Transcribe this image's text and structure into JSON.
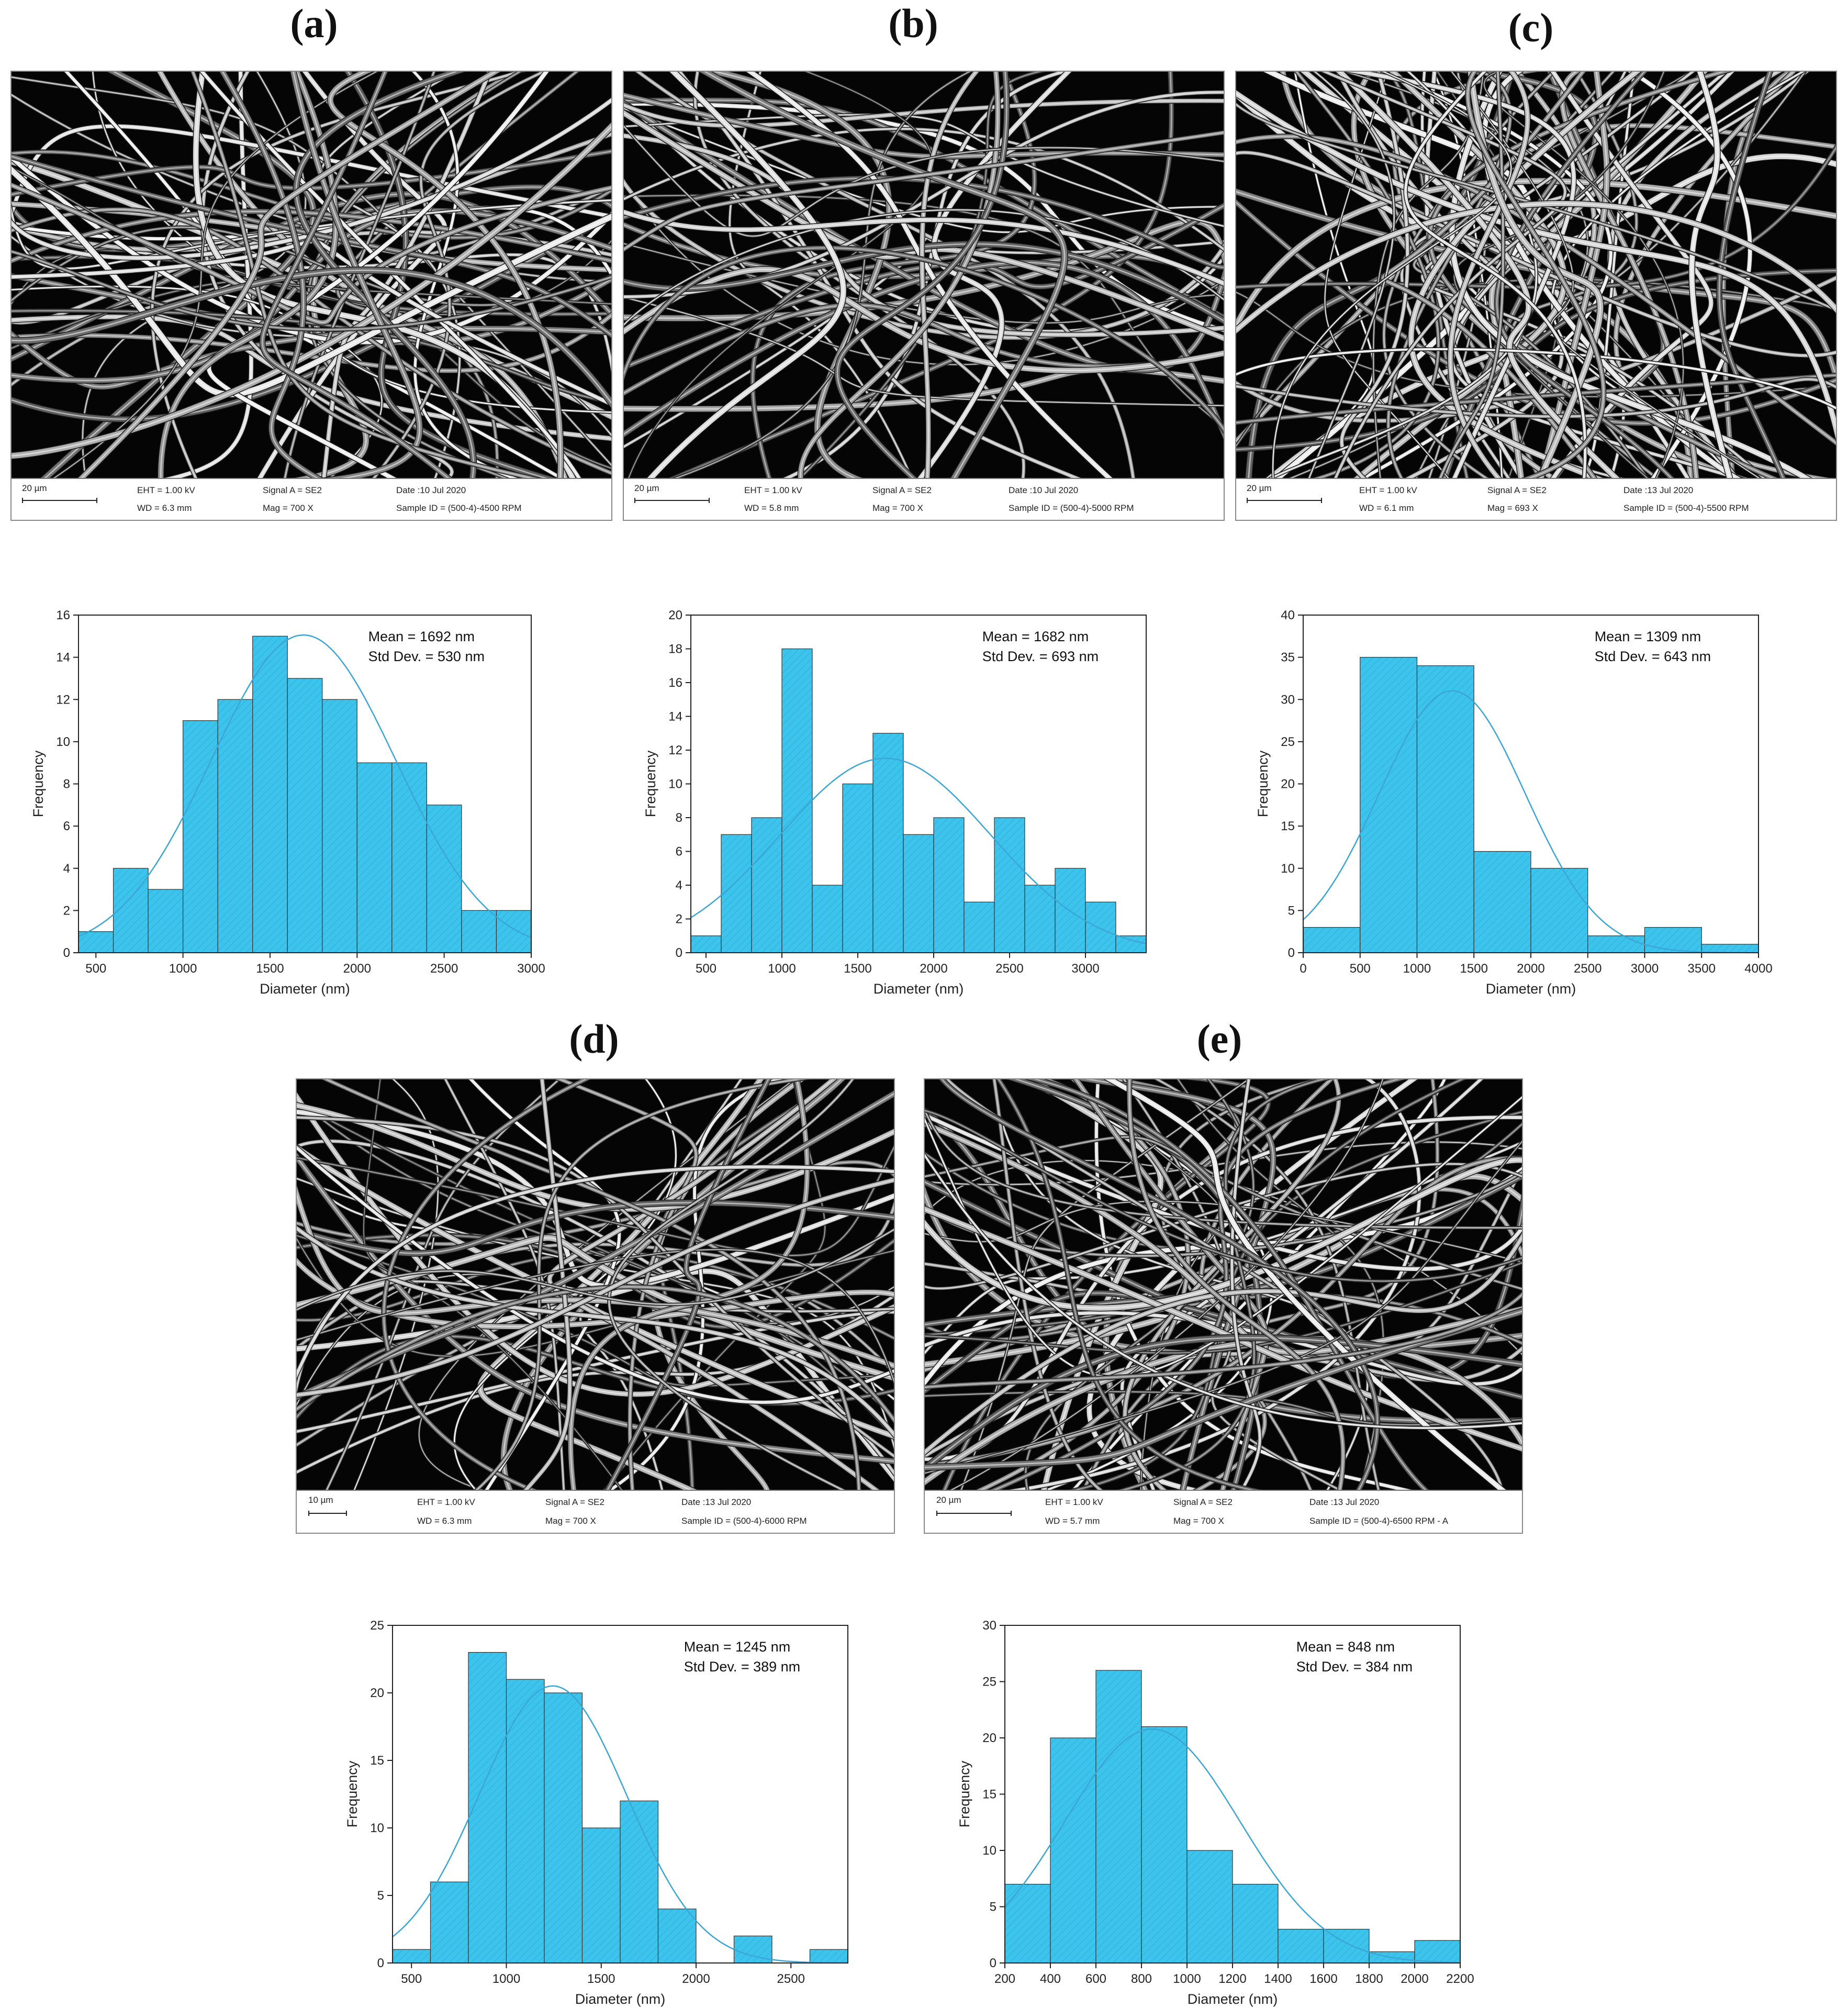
{
  "panels": [
    {
      "label": "(a)",
      "sem": {
        "scale": "20 µm",
        "eht": "EHT =  1.00 kV",
        "wd": "WD =  6.3 mm",
        "signal": "Signal A = SE2",
        "mag": "Mag =    700 X",
        "date": "Date :10 Jul 2020",
        "sample": "Sample ID = (500-4)-4500 RPM"
      }
    },
    {
      "label": "(b)",
      "sem": {
        "scale": "20 µm",
        "eht": "EHT =  1.00 kV",
        "wd": "WD =  5.8 mm",
        "signal": "Signal A = SE2",
        "mag": "Mag =    700 X",
        "date": "Date :10 Jul 2020",
        "sample": "Sample ID = (500-4)-5000 RPM"
      }
    },
    {
      "label": "(c)",
      "sem": {
        "scale": "20 µm",
        "eht": "EHT =  1.00 kV",
        "wd": "WD =  6.1 mm",
        "signal": "Signal A = SE2",
        "mag": "Mag =    693 X",
        "date": "Date :13 Jul 2020",
        "sample": "Sample ID = (500-4)-5500 RPM"
      }
    },
    {
      "label": "(d)",
      "sem": {
        "scale": "10 µm",
        "eht": "EHT =  1.00 kV",
        "wd": "WD =  6.3 mm",
        "signal": "Signal A = SE2",
        "mag": "Mag =    700 X",
        "date": "Date :13 Jul 2020",
        "sample": "Sample ID = (500-4)-6000 RPM"
      }
    },
    {
      "label": "(e)",
      "sem": {
        "scale": "20 µm",
        "eht": "EHT =  1.00 kV",
        "wd": "WD =  5.7 mm",
        "signal": "Signal A = SE2",
        "mag": "Mag =    700 X",
        "date": "Date :13 Jul 2020",
        "sample": "Sample ID = (500-4)-6500 RPM - A"
      }
    }
  ],
  "colors": {
    "bar_fill": "#3cc4ec",
    "bar_stroke": "#2a7fa8",
    "curve": "#3ba6d4"
  },
  "chart_data": [
    {
      "type": "bar",
      "panel": "(a)",
      "xlabel": "Diameter (nm)",
      "ylabel": "Frequency",
      "mean_text": "Mean = 1692 nm",
      "std_text": "Std Dev. = 530 nm",
      "mean": 1692,
      "std": 530,
      "xlim": [
        400,
        3000
      ],
      "ylim": [
        0,
        16
      ],
      "xticks": [
        500,
        1000,
        1500,
        2000,
        2500,
        3000
      ],
      "yticks": [
        0,
        2,
        4,
        6,
        8,
        10,
        12,
        14,
        16
      ],
      "bin_edges": [
        400,
        600,
        800,
        1000,
        1200,
        1400,
        1600,
        1800,
        2000,
        2200,
        2400,
        2600,
        2800,
        3000
      ],
      "values": [
        1,
        4,
        3,
        11,
        12,
        15,
        13,
        12,
        9,
        9,
        7,
        2,
        2
      ]
    },
    {
      "type": "bar",
      "panel": "(b)",
      "xlabel": "Diameter (nm)",
      "ylabel": "Frequency",
      "mean_text": "Mean = 1682 nm",
      "std_text": "Std Dev. = 693 nm",
      "mean": 1682,
      "std": 693,
      "xlim": [
        400,
        3400
      ],
      "ylim": [
        0,
        20
      ],
      "xticks": [
        500,
        1000,
        1500,
        2000,
        2500,
        3000
      ],
      "yticks": [
        0,
        2,
        4,
        6,
        8,
        10,
        12,
        14,
        16,
        18,
        20
      ],
      "bin_edges": [
        400,
        600,
        800,
        1000,
        1200,
        1400,
        1600,
        1800,
        2000,
        2200,
        2400,
        2600,
        2800,
        3000,
        3200,
        3400
      ],
      "values": [
        1,
        7,
        8,
        18,
        4,
        10,
        13,
        7,
        8,
        3,
        8,
        4,
        5,
        3,
        1
      ]
    },
    {
      "type": "bar",
      "panel": "(c)",
      "xlabel": "Diameter (nm)",
      "ylabel": "Frequency",
      "mean_text": "Mean = 1309 nm",
      "std_text": "Std Dev. = 643 nm",
      "mean": 1309,
      "std": 643,
      "xlim": [
        0,
        4000
      ],
      "ylim": [
        0,
        40
      ],
      "xticks": [
        0,
        500,
        1000,
        1500,
        2000,
        2500,
        3000,
        3500,
        4000
      ],
      "yticks": [
        0,
        5,
        10,
        15,
        20,
        25,
        30,
        35,
        40
      ],
      "bin_edges": [
        0,
        500,
        1000,
        1500,
        2000,
        2500,
        3000,
        3500,
        4000
      ],
      "values": [
        3,
        35,
        34,
        12,
        10,
        2,
        3,
        1
      ]
    },
    {
      "type": "bar",
      "panel": "(d)",
      "xlabel": "Diameter (nm)",
      "ylabel": "Frequency",
      "mean_text": "Mean = 1245 nm",
      "std_text": "Std Dev. = 389 nm",
      "mean": 1245,
      "std": 389,
      "xlim": [
        400,
        2800
      ],
      "ylim": [
        0,
        25
      ],
      "xticks": [
        500,
        1000,
        1500,
        2000,
        2500
      ],
      "yticks": [
        0,
        5,
        10,
        15,
        20,
        25
      ],
      "bin_edges": [
        400,
        600,
        800,
        1000,
        1200,
        1400,
        1600,
        1800,
        2000,
        2200,
        2400,
        2600,
        2800
      ],
      "values": [
        1,
        6,
        23,
        21,
        20,
        10,
        12,
        4,
        0,
        2,
        0,
        1
      ]
    },
    {
      "type": "bar",
      "panel": "(e)",
      "xlabel": "Diameter (nm)",
      "ylabel": "Frequency",
      "mean_text": "Mean = 848 nm",
      "std_text": "Std Dev. = 384 nm",
      "mean": 848,
      "std": 384,
      "xlim": [
        200,
        2200
      ],
      "ylim": [
        0,
        30
      ],
      "xticks": [
        200,
        400,
        600,
        800,
        1000,
        1200,
        1400,
        1600,
        1800,
        2000,
        2200
      ],
      "yticks": [
        0,
        5,
        10,
        15,
        20,
        25,
        30
      ],
      "bin_edges": [
        200,
        400,
        600,
        800,
        1000,
        1200,
        1400,
        1600,
        1800,
        2000,
        2200
      ],
      "values": [
        7,
        20,
        26,
        21,
        10,
        7,
        3,
        3,
        1,
        2
      ]
    }
  ]
}
